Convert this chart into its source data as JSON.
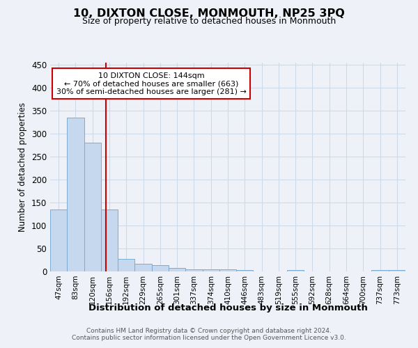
{
  "title": "10, DIXTON CLOSE, MONMOUTH, NP25 3PQ",
  "subtitle": "Size of property relative to detached houses in Monmouth",
  "xlabel": "Distribution of detached houses by size in Monmouth",
  "ylabel": "Number of detached properties",
  "footer_line1": "Contains HM Land Registry data © Crown copyright and database right 2024.",
  "footer_line2": "Contains public sector information licensed under the Open Government Licence v3.0.",
  "categories": [
    "47sqm",
    "83sqm",
    "120sqm",
    "156sqm",
    "192sqm",
    "229sqm",
    "265sqm",
    "301sqm",
    "337sqm",
    "374sqm",
    "410sqm",
    "446sqm",
    "483sqm",
    "519sqm",
    "555sqm",
    "592sqm",
    "628sqm",
    "664sqm",
    "700sqm",
    "737sqm",
    "773sqm"
  ],
  "values": [
    135,
    335,
    280,
    135,
    27,
    17,
    13,
    8,
    5,
    5,
    5,
    3,
    0,
    0,
    3,
    0,
    0,
    0,
    0,
    3,
    3
  ],
  "bar_color": "#c5d8ed",
  "bar_edge_color": "#7aadd4",
  "grid_color": "#cdd8e8",
  "background_color": "#eef2f8",
  "vline_x": 2.78,
  "vline_color": "#cc0000",
  "annotation_text": "10 DIXTON CLOSE: 144sqm\n← 70% of detached houses are smaller (663)\n30% of semi-detached houses are larger (281) →",
  "annotation_box_color": "#ffffff",
  "annotation_box_edge": "#cc0000",
  "ylim": [
    0,
    455
  ],
  "yticks": [
    0,
    50,
    100,
    150,
    200,
    250,
    300,
    350,
    400,
    450
  ]
}
